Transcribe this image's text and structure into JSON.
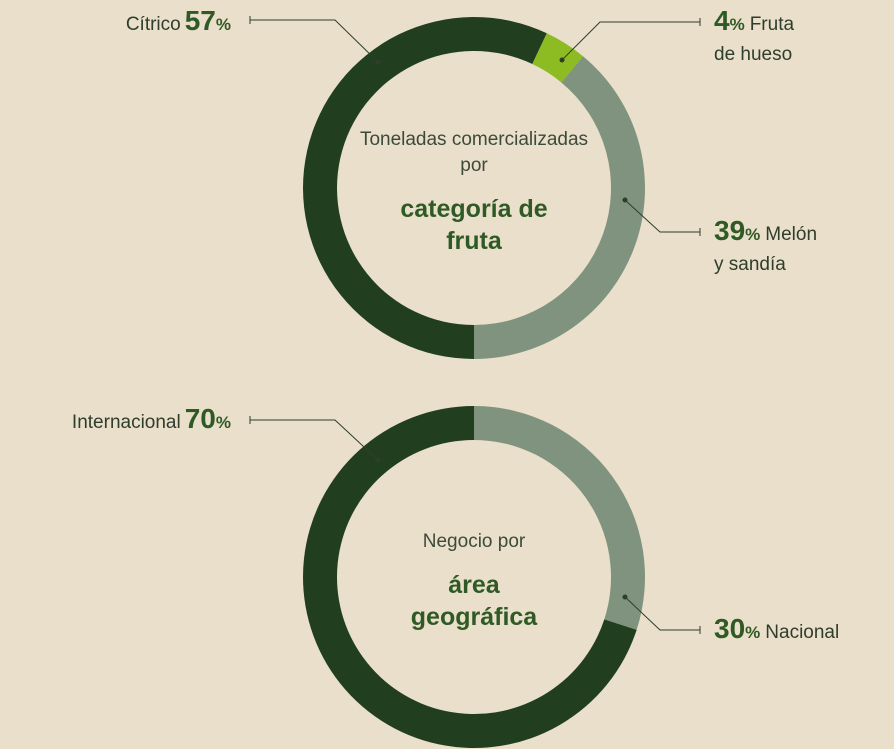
{
  "chart_data": [
    {
      "type": "donut",
      "subtitle": "Toneladas comercializadas por",
      "title": "categoría de fruta",
      "categories": [
        "Cítrico",
        "Fruta de hueso",
        "Melón y sandía"
      ],
      "values": [
        57,
        4,
        39
      ],
      "unit": "%",
      "colors": [
        "#213f1f",
        "#8dbb22",
        "#7f937e"
      ]
    },
    {
      "type": "donut",
      "subtitle": "Negocio por",
      "title": "área geográfica",
      "categories": [
        "Nacional",
        "Internacional"
      ],
      "values": [
        30,
        70
      ],
      "unit": "%",
      "colors": [
        "#7f937e",
        "#213f1f"
      ]
    }
  ]
}
